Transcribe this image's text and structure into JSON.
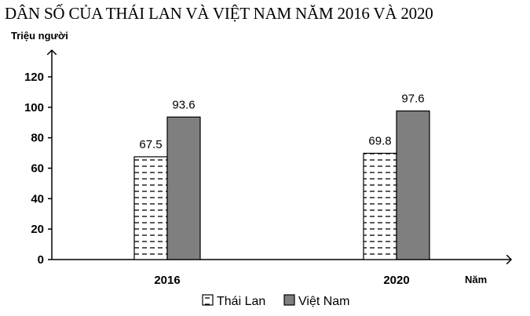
{
  "chart_data": {
    "type": "bar",
    "title": "DÂN SỐ CỦA THÁI LAN VÀ VIỆT NAM NĂM 2016 VÀ 2020",
    "ylabel": "Triệu người",
    "xlabel": "Năm",
    "categories": [
      "2016",
      "2020"
    ],
    "series": [
      {
        "name": "Thái Lan",
        "values": [
          67.5,
          69.8
        ],
        "labels": [
          "67.5",
          "69.8"
        ],
        "pattern": "dashed-hatch"
      },
      {
        "name": "Việt Nam",
        "values": [
          93.6,
          97.6
        ],
        "labels": [
          "93.6",
          "97.6"
        ],
        "pattern": "solid-gray",
        "color": "#7f7f7f"
      }
    ],
    "ylim": [
      0,
      120
    ],
    "yticks": [
      "0",
      "20",
      "40",
      "60",
      "80",
      "100",
      "120"
    ],
    "grid": false,
    "legend": "bottom-center"
  }
}
